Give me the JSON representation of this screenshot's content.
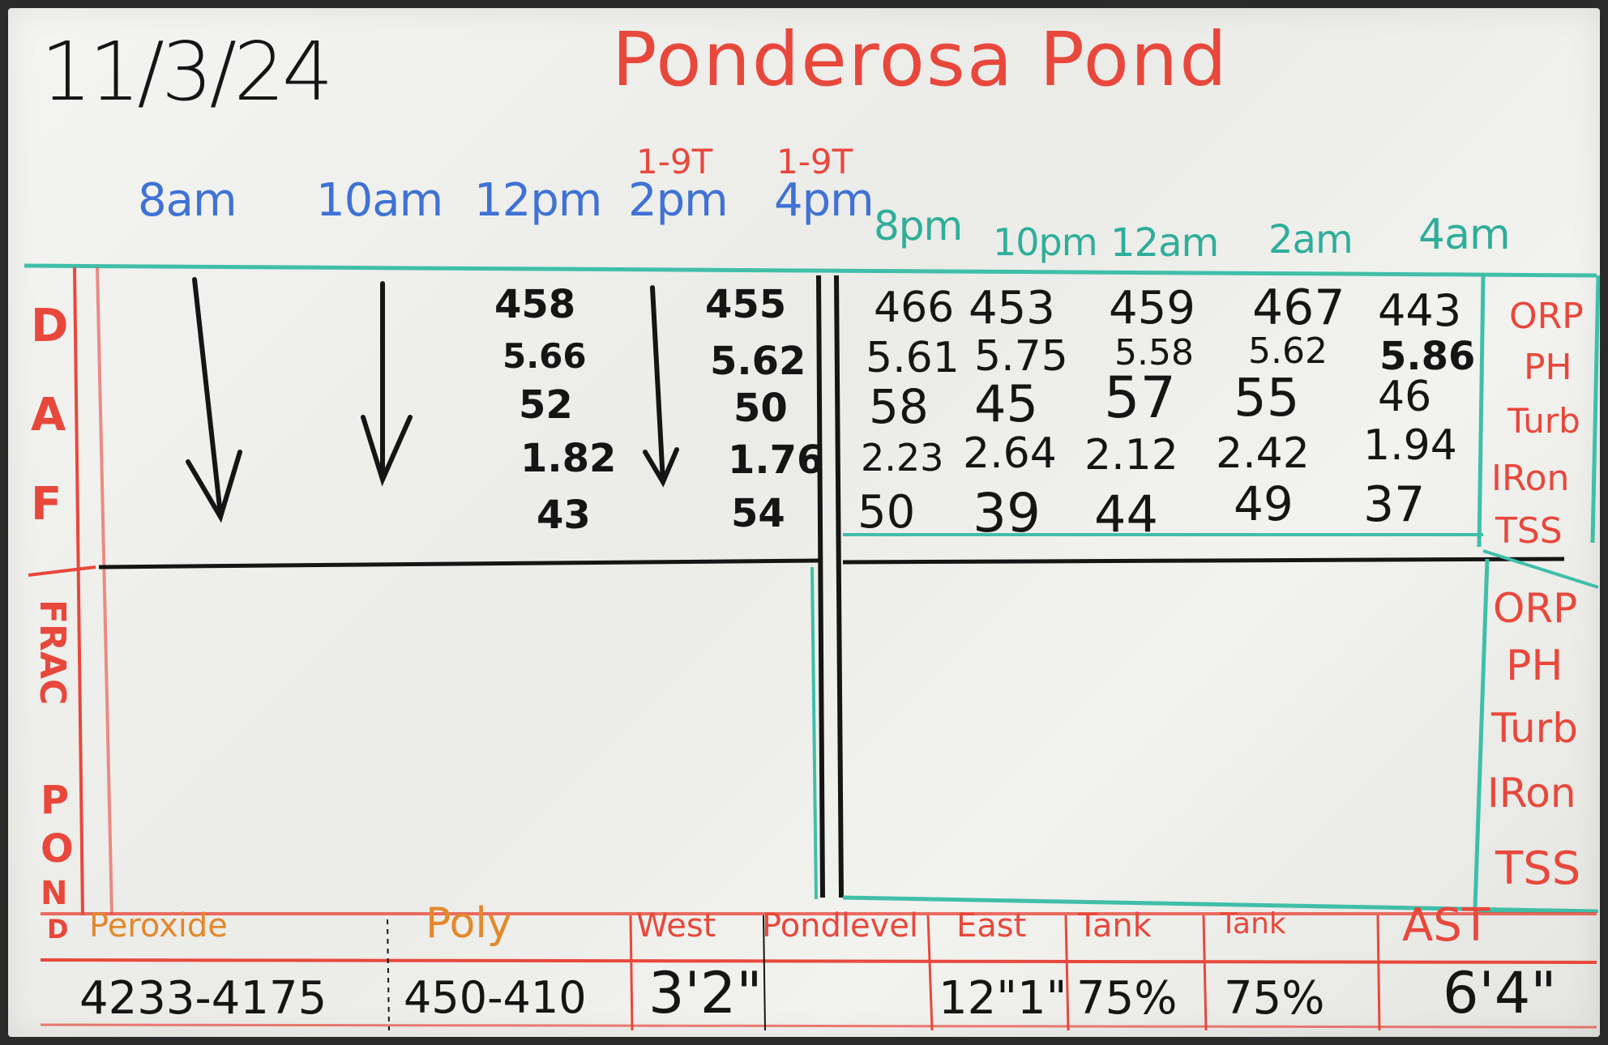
{
  "date": "11/3/24",
  "title": "Ponderosa Pond",
  "annotations": [
    "1-9T",
    "1-9T"
  ],
  "times": [
    "8am",
    "10am",
    "12pm",
    "2pm",
    "4pm",
    "8pm",
    "10pm",
    "12am",
    "2am",
    "4am"
  ],
  "section_daf": [
    "D",
    "A",
    "F"
  ],
  "section_frac": [
    "FRAC",
    "P",
    "O",
    "N",
    "D"
  ],
  "params_top": [
    "ORP",
    "PH",
    "Turb",
    "IRon",
    "TSS"
  ],
  "params_bottom": [
    "ORP",
    "PH",
    "Turb",
    "IRon",
    "TSS"
  ],
  "readings": {
    "12pm": [
      "458",
      "5.66",
      "52",
      "1.82",
      "43"
    ],
    "4pm": [
      "455",
      "5.62",
      "50",
      "1.76",
      "54"
    ],
    "8pm": [
      "466",
      "5.61",
      "58",
      "2.23",
      "50"
    ],
    "10pm": [
      "453",
      "5.75",
      "45",
      "2.64",
      "39"
    ],
    "12am": [
      "459",
      "5.58",
      "57",
      "2.12",
      "44"
    ],
    "2am": [
      "467",
      "5.62",
      "55",
      "2.42",
      "49"
    ],
    "4am": [
      "443",
      "5.86",
      "46",
      "1.94",
      "37"
    ]
  },
  "bottom_labels": [
    "Peroxide",
    "Poly",
    "West",
    "Pondlevel",
    "East",
    "Tank",
    "Tank",
    "AST"
  ],
  "bottom_values": {
    "peroxide": "4233-4175",
    "poly": "450-410",
    "west": "3'2\"",
    "east": "12\"1\"",
    "tank1": "75%",
    "tank2": "75%",
    "ast": "6'4\""
  }
}
